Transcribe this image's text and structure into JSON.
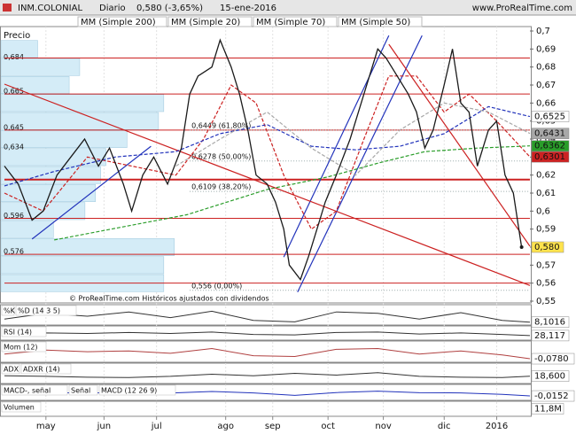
{
  "header": {
    "symbol": "INM.COLONIAL",
    "period": "Diario",
    "quote": "0,580 (-3,65%)",
    "date": "15-ene-2016",
    "site": "www.ProRealTime.com"
  },
  "chart_data": [
    {
      "type": "price",
      "panel_label": "Precio",
      "note": "© ProRealTime.com   Históricos ajustados con dividendos",
      "xlim": [
        0,
        190
      ],
      "xticks": [
        {
          "value": 15,
          "label": "may"
        },
        {
          "value": 36,
          "label": "jun"
        },
        {
          "value": 55,
          "label": "jul"
        },
        {
          "value": 80,
          "label": "ago"
        },
        {
          "value": 97,
          "label": "sep"
        },
        {
          "value": 117,
          "label": "oct"
        },
        {
          "value": 137,
          "label": "nov"
        },
        {
          "value": 159,
          "label": "dic"
        },
        {
          "value": 178,
          "label": "2016"
        }
      ],
      "ylim": [
        0.55,
        0.7
      ],
      "yticks": [
        {
          "value": 0.7,
          "label": "0,7"
        },
        {
          "value": 0.69,
          "label": "0,69"
        },
        {
          "value": 0.68,
          "label": "0,68"
        },
        {
          "value": 0.67,
          "label": "0,67"
        },
        {
          "value": 0.66,
          "label": "0,66"
        },
        {
          "value": 0.65,
          "label": "0,65"
        },
        {
          "value": 0.64,
          "label": "0,64"
        },
        {
          "value": 0.63,
          "label": "0,63"
        },
        {
          "value": 0.62,
          "label": "0,62"
        },
        {
          "value": 0.61,
          "label": "0,61"
        },
        {
          "value": 0.6,
          "label": "0,6"
        },
        {
          "value": 0.59,
          "label": "0,59"
        },
        {
          "value": 0.58,
          "label": "0,58"
        },
        {
          "value": 0.57,
          "label": "0,57"
        },
        {
          "value": 0.56,
          "label": "0,56"
        },
        {
          "value": 0.55,
          "label": "0,55"
        }
      ],
      "price": {
        "color": "#1a1a1a",
        "x": [
          0,
          5,
          10,
          14,
          19,
          24,
          29,
          34,
          38,
          43,
          46,
          50,
          54,
          59,
          64,
          67,
          70,
          75,
          78,
          82,
          85,
          88,
          91,
          95,
          98,
          101,
          103,
          107,
          110,
          113,
          116,
          120,
          125,
          130,
          135,
          138,
          142,
          146,
          149,
          152,
          155,
          159,
          162,
          165,
          168,
          171,
          175,
          178,
          181,
          184,
          187
        ],
        "values": [
          0.625,
          0.615,
          0.595,
          0.6,
          0.62,
          0.63,
          0.64,
          0.625,
          0.635,
          0.615,
          0.6,
          0.62,
          0.63,
          0.615,
          0.635,
          0.665,
          0.675,
          0.68,
          0.695,
          0.68,
          0.665,
          0.645,
          0.62,
          0.615,
          0.605,
          0.59,
          0.57,
          0.562,
          0.575,
          0.59,
          0.605,
          0.62,
          0.64,
          0.665,
          0.69,
          0.685,
          0.675,
          0.665,
          0.655,
          0.635,
          0.645,
          0.67,
          0.69,
          0.66,
          0.655,
          0.625,
          0.645,
          0.65,
          0.62,
          0.61,
          0.58
        ],
        "value_labels": [
          null,
          null,
          null,
          null,
          null,
          null,
          null,
          null,
          null,
          null,
          null,
          null,
          null,
          null,
          null,
          null,
          null,
          null,
          null,
          null,
          null,
          null,
          null,
          null,
          null,
          null,
          null,
          null,
          null,
          null,
          null,
          null,
          null,
          null,
          null,
          null,
          null,
          null,
          null,
          null,
          null,
          null,
          null,
          null,
          null,
          null,
          null,
          null,
          null,
          null,
          "0,580"
        ]
      },
      "series": [
        {
          "name": "MM (Simple 200)",
          "color": "#2a9d2a",
          "x": [
            18,
            66,
            95,
            117,
            136,
            152,
            171,
            190
          ],
          "values": [
            0.584,
            0.598,
            0.612,
            0.619,
            0.627,
            0.633,
            0.635,
            0.6362
          ],
          "value_labels": [
            null,
            null,
            null,
            null,
            null,
            null,
            null,
            "0,6362"
          ]
        },
        {
          "name": "MM (Simple 20)",
          "color": "#cc2222",
          "x": [
            0,
            14,
            30,
            46,
            62,
            72,
            82,
            91,
            101,
            111,
            120,
            130,
            139,
            149,
            159,
            168,
            178,
            190
          ],
          "values": [
            0.61,
            0.6,
            0.63,
            0.625,
            0.62,
            0.64,
            0.67,
            0.66,
            0.62,
            0.59,
            0.6,
            0.64,
            0.675,
            0.675,
            0.655,
            0.665,
            0.65,
            0.6301
          ],
          "value_labels": [
            null,
            null,
            null,
            null,
            null,
            null,
            null,
            null,
            null,
            null,
            null,
            null,
            null,
            null,
            null,
            null,
            null,
            "0,6301"
          ]
        },
        {
          "name": "MM (Simple 70)",
          "color": "#2233bb",
          "x": [
            0,
            18,
            40,
            62,
            78,
            95,
            111,
            127,
            143,
            159,
            175,
            190
          ],
          "values": [
            0.614,
            0.622,
            0.63,
            0.633,
            0.643,
            0.648,
            0.636,
            0.634,
            0.636,
            0.643,
            0.658,
            0.6525
          ],
          "value_labels": [
            null,
            null,
            null,
            null,
            null,
            null,
            null,
            null,
            null,
            null,
            null,
            "0,6525"
          ]
        },
        {
          "name": "MM (Simple 50)",
          "color": "#a8a8a8",
          "x": [
            62,
            78,
            95,
            111,
            127,
            143,
            159,
            175,
            190
          ],
          "values": [
            0.625,
            0.64,
            0.655,
            0.635,
            0.62,
            0.645,
            0.66,
            0.655,
            0.6431
          ],
          "value_labels": [
            null,
            null,
            null,
            null,
            null,
            null,
            null,
            null,
            "0,6431"
          ]
        }
      ],
      "hlines": {
        "color": "#cc2222",
        "values": [
          0.685,
          0.665,
          0.645,
          0.6175,
          0.596,
          0.576,
          0.56
        ]
      },
      "trendlines": [
        {
          "color": "#2233bb",
          "x": [
            10,
            53
          ],
          "values": [
            0.5845,
            0.636
          ]
        },
        {
          "color": "#2233bb",
          "x": [
            101,
            139
          ],
          "values": [
            0.5745,
            0.6975
          ]
        },
        {
          "color": "#2233bb",
          "x": [
            106,
            151
          ],
          "values": [
            0.555,
            0.6975
          ]
        },
        {
          "color": "#cc2222",
          "x": [
            0,
            190
          ],
          "values": [
            0.6705,
            0.5587
          ]
        },
        {
          "color": "#cc2222",
          "x": [
            139,
            190
          ],
          "values": [
            0.6926,
            0.5805
          ]
        }
      ],
      "fibonacci": [
        {
          "label": "0,6449 (61,80%)",
          "x": 67,
          "value": 0.6449
        },
        {
          "label": "0,6278 (50,00%)",
          "x": 67,
          "value": 0.6278
        },
        {
          "label": "0,6109 (38,20%)",
          "x": 67,
          "value": 0.6109
        },
        {
          "label": "0,556 (0,00%)",
          "x": 67,
          "value": 0.556
        }
      ],
      "volume_profile": {
        "color": "#d4ecf7",
        "xlim": [
          0,
          100
        ],
        "bins": [
          0.555,
          0.565,
          0.575,
          0.585,
          0.595,
          0.605,
          0.615,
          0.625,
          0.635,
          0.645,
          0.655,
          0.665,
          0.675,
          0.685,
          0.695
        ],
        "values": [
          31,
          31,
          33,
          10,
          16,
          18,
          19,
          20,
          24,
          30,
          31,
          13,
          15,
          7
        ],
        "levels": [
          {
            "value": 0.684,
            "label": "0,684"
          },
          {
            "value": 0.665,
            "label": "0,665"
          },
          {
            "value": 0.645,
            "label": "0,645"
          },
          {
            "value": 0.634,
            "label": "0,634"
          },
          {
            "value": 0.596,
            "label": "0,596"
          },
          {
            "value": 0.576,
            "label": "0,576"
          }
        ]
      }
    },
    {
      "type": "line",
      "labels": [
        "%K",
        "%D (14 3 5)"
      ],
      "color": "#333333",
      "ylim": [
        0,
        100
      ],
      "x": [
        0,
        15,
        30,
        45,
        60,
        75,
        90,
        105,
        120,
        135,
        150,
        165,
        180,
        190
      ],
      "values": [
        30,
        70,
        50,
        80,
        40,
        85,
        20,
        10,
        80,
        70,
        30,
        75,
        20,
        8.1016
      ],
      "value_labels": [
        null,
        null,
        null,
        null,
        null,
        null,
        null,
        null,
        null,
        null,
        null,
        null,
        null,
        "8,1016"
      ]
    },
    {
      "type": "line",
      "labels": [
        "RSI (14)"
      ],
      "color": "#333333",
      "ylim": [
        0,
        100
      ],
      "x": [
        0,
        15,
        30,
        45,
        60,
        75,
        90,
        105,
        120,
        135,
        150,
        165,
        180,
        190
      ],
      "values": [
        45,
        55,
        50,
        60,
        50,
        65,
        40,
        35,
        60,
        65,
        45,
        55,
        40,
        28.117
      ],
      "value_labels": [
        null,
        null,
        null,
        null,
        null,
        null,
        null,
        null,
        null,
        null,
        null,
        null,
        null,
        "28,117"
      ]
    },
    {
      "type": "line",
      "labels": [
        "Mom (12)"
      ],
      "color": "#b04040",
      "ylim": [
        -0.1,
        0.1
      ],
      "x": [
        0,
        15,
        30,
        45,
        60,
        75,
        90,
        105,
        120,
        135,
        150,
        165,
        180,
        190
      ],
      "values": [
        -0.02,
        0.03,
        0.01,
        0.02,
        -0.01,
        0.05,
        -0.04,
        -0.05,
        0.04,
        0.05,
        -0.02,
        0.02,
        -0.03,
        -0.078
      ],
      "value_labels": [
        null,
        null,
        null,
        null,
        null,
        null,
        null,
        null,
        null,
        null,
        null,
        null,
        null,
        "-0,0780"
      ]
    },
    {
      "type": "line",
      "labels": [
        "ADX",
        "ADXR (14)"
      ],
      "color": "#333333",
      "ylim": [
        0,
        50
      ],
      "x": [
        0,
        15,
        30,
        45,
        60,
        75,
        90,
        105,
        120,
        135,
        150,
        165,
        180,
        190
      ],
      "values": [
        20,
        18,
        15,
        14,
        18,
        25,
        20,
        28,
        22,
        30,
        18,
        15,
        14,
        18.6
      ],
      "value_labels": [
        null,
        null,
        null,
        null,
        null,
        null,
        null,
        null,
        null,
        null,
        null,
        null,
        null,
        "18,600"
      ]
    },
    {
      "type": "line",
      "labels": [
        "MACD-, señal",
        "Señal",
        "MACD (12 26 9)"
      ],
      "color": "#2233bb",
      "ylim": [
        -0.03,
        0.03
      ],
      "x": [
        0,
        15,
        30,
        45,
        60,
        75,
        90,
        105,
        120,
        135,
        150,
        165,
        180,
        190
      ],
      "values": [
        -0.005,
        0.003,
        0.002,
        0.004,
        0.001,
        0.01,
        0.002,
        -0.012,
        0.004,
        0.012,
        0.003,
        0.002,
        -0.006,
        -0.0152
      ],
      "value_labels": [
        null,
        null,
        null,
        null,
        null,
        null,
        null,
        null,
        null,
        null,
        null,
        null,
        null,
        "-0,0152"
      ]
    },
    {
      "type": "volume",
      "labels": [
        "Volumen"
      ],
      "value": 11800000,
      "value_label": "11,8M"
    }
  ]
}
